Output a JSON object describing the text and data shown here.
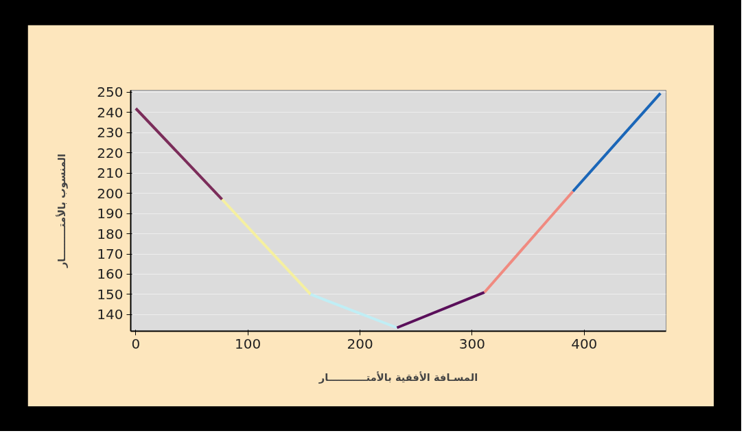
{
  "chart_data": {
    "type": "line",
    "xlabel": "المسـافة الأفقية بالأمتـــــــــــار",
    "ylabel": "المنسوب بالأمتـــــــــار",
    "series": [
      {
        "color": "#7b2d5a",
        "x": [
          0,
          77
        ],
        "values": [
          242,
          197
        ]
      },
      {
        "color": "#f5f0a0",
        "x": [
          77,
          156
        ],
        "values": [
          197,
          150
        ]
      },
      {
        "color": "#c0eef5",
        "x": [
          156,
          233
        ],
        "values": [
          150,
          133.5
        ]
      },
      {
        "color": "#5a0f5a",
        "x": [
          233,
          311
        ],
        "values": [
          133.5,
          151
        ]
      },
      {
        "color": "#f08a80",
        "x": [
          311,
          390
        ],
        "values": [
          151,
          201
        ]
      },
      {
        "color": "#1a66b8",
        "x": [
          390,
          468
        ],
        "values": [
          201,
          249.5
        ]
      }
    ],
    "xlim": [
      -4.5,
      473
    ],
    "ylim": [
      131.8,
      251
    ],
    "xticks": [
      0,
      100,
      200,
      300,
      400
    ],
    "yticks": [
      140,
      150,
      160,
      170,
      180,
      190,
      200,
      210,
      220,
      230,
      240,
      250
    ],
    "grid": "y",
    "marker": "none",
    "line_style": "solid"
  }
}
